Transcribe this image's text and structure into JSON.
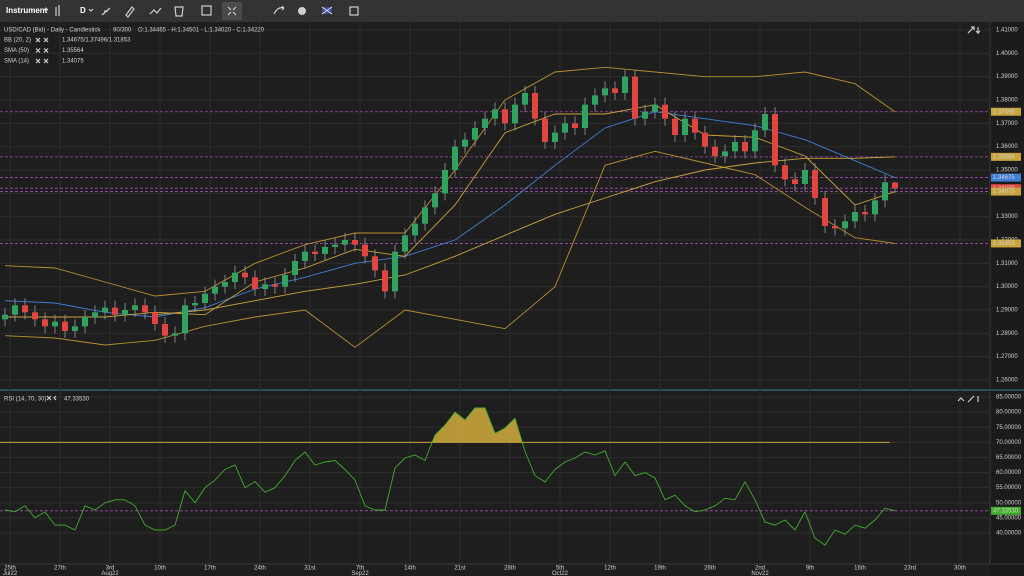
{
  "toolbar": {
    "instrument": "Instrument",
    "timeframe": "D"
  },
  "header": {
    "title": "USD/CAD (Bid) - Daily - Candlestick",
    "count": "90/300",
    "ohlc": "O:1.34465 - H:1.34501 - L:1.34020 - C:1.34220"
  },
  "legend": [
    {
      "name": "BB (20, 2)",
      "value": "1.34675/1.37496/1.31853"
    },
    {
      "name": "SMA (50)",
      "value": "1.35564"
    },
    {
      "name": "SMA (14)",
      "value": "1.34075"
    }
  ],
  "price_axis": {
    "ticks": [
      {
        "value": 1.41,
        "label": "1.41000"
      },
      {
        "value": 1.4,
        "label": "1.40000"
      },
      {
        "value": 1.39,
        "label": "1.39000"
      },
      {
        "value": 1.38,
        "label": "1.38000"
      },
      {
        "value": 1.37,
        "label": "1.37000"
      },
      {
        "value": 1.36,
        "label": "1.36000"
      },
      {
        "value": 1.35,
        "label": "1.35000"
      },
      {
        "value": 1.34,
        "label": "1.34000"
      },
      {
        "value": 1.33,
        "label": "1.33000"
      },
      {
        "value": 1.32,
        "label": "1.32000"
      },
      {
        "value": 1.31,
        "label": "1.31000"
      },
      {
        "value": 1.3,
        "label": "1.30000"
      },
      {
        "value": 1.29,
        "label": "1.29000"
      },
      {
        "value": 1.28,
        "label": "1.28000"
      },
      {
        "value": 1.27,
        "label": "1.27000"
      },
      {
        "value": 1.26,
        "label": "1.26000"
      }
    ]
  },
  "price_markers": [
    {
      "value": 1.37496,
      "color": "#c9a43c"
    },
    {
      "value": 1.35564,
      "color": "#c9a43c"
    },
    {
      "value": 1.34675,
      "color": "#3f7fd6"
    },
    {
      "value": 1.3422,
      "label": "1.34220",
      "color": "#e0463f"
    },
    {
      "value": 1.34075,
      "color": "#c9a43c"
    },
    {
      "value": 1.31853,
      "color": "#c9a43c"
    }
  ],
  "candle_colors": {
    "up": "#2fa35f",
    "down": "#e0463f"
  },
  "candles": [
    [
      1.286,
      1.291,
      1.283,
      1.288
    ],
    [
      1.288,
      1.295,
      1.285,
      1.292
    ],
    [
      1.292,
      1.295,
      1.286,
      1.289
    ],
    [
      1.289,
      1.292,
      1.283,
      1.286
    ],
    [
      1.286,
      1.289,
      1.28,
      1.283
    ],
    [
      1.283,
      1.288,
      1.28,
      1.285
    ],
    [
      1.285,
      1.288,
      1.278,
      1.281
    ],
    [
      1.281,
      1.286,
      1.278,
      1.283
    ],
    [
      1.283,
      1.29,
      1.28,
      1.287
    ],
    [
      1.287,
      1.292,
      1.284,
      1.289
    ],
    [
      1.289,
      1.294,
      1.286,
      1.291
    ],
    [
      1.291,
      1.294,
      1.285,
      1.288
    ],
    [
      1.288,
      1.293,
      1.285,
      1.29
    ],
    [
      1.29,
      1.295,
      1.287,
      1.292
    ],
    [
      1.292,
      1.295,
      1.286,
      1.289
    ],
    [
      1.289,
      1.292,
      1.281,
      1.284
    ],
    [
      1.284,
      1.287,
      1.276,
      1.279
    ],
    [
      1.279,
      1.283,
      1.276,
      1.28
    ],
    [
      1.28,
      1.295,
      1.277,
      1.292
    ],
    [
      1.292,
      1.296,
      1.289,
      1.293
    ],
    [
      1.293,
      1.3,
      1.29,
      1.297
    ],
    [
      1.297,
      1.303,
      1.294,
      1.3
    ],
    [
      1.3,
      1.305,
      1.297,
      1.302
    ],
    [
      1.302,
      1.309,
      1.299,
      1.306
    ],
    [
      1.306,
      1.309,
      1.301,
      1.304
    ],
    [
      1.304,
      1.307,
      1.296,
      1.299
    ],
    [
      1.299,
      1.304,
      1.296,
      1.301
    ],
    [
      1.301,
      1.304,
      1.297,
      1.3
    ],
    [
      1.3,
      1.308,
      1.297,
      1.305
    ],
    [
      1.305,
      1.314,
      1.302,
      1.311
    ],
    [
      1.311,
      1.318,
      1.308,
      1.315
    ],
    [
      1.315,
      1.318,
      1.311,
      1.314
    ],
    [
      1.314,
      1.32,
      1.311,
      1.317
    ],
    [
      1.317,
      1.321,
      1.314,
      1.318
    ],
    [
      1.318,
      1.323,
      1.315,
      1.32
    ],
    [
      1.32,
      1.323,
      1.315,
      1.318
    ],
    [
      1.318,
      1.321,
      1.31,
      1.313
    ],
    [
      1.313,
      1.316,
      1.304,
      1.307
    ],
    [
      1.307,
      1.31,
      1.295,
      1.298
    ],
    [
      1.298,
      1.318,
      1.295,
      1.315
    ],
    [
      1.315,
      1.325,
      1.312,
      1.322
    ],
    [
      1.322,
      1.33,
      1.319,
      1.327
    ],
    [
      1.327,
      1.337,
      1.324,
      1.334
    ],
    [
      1.334,
      1.343,
      1.331,
      1.34
    ],
    [
      1.34,
      1.353,
      1.337,
      1.35
    ],
    [
      1.35,
      1.363,
      1.347,
      1.36
    ],
    [
      1.36,
      1.366,
      1.357,
      1.363
    ],
    [
      1.363,
      1.371,
      1.36,
      1.368
    ],
    [
      1.368,
      1.375,
      1.365,
      1.372
    ],
    [
      1.372,
      1.379,
      1.369,
      1.376
    ],
    [
      1.376,
      1.379,
      1.367,
      1.37
    ],
    [
      1.37,
      1.381,
      1.367,
      1.378
    ],
    [
      1.378,
      1.386,
      1.375,
      1.383
    ],
    [
      1.383,
      1.386,
      1.369,
      1.372
    ],
    [
      1.372,
      1.375,
      1.359,
      1.362
    ],
    [
      1.362,
      1.369,
      1.359,
      1.366
    ],
    [
      1.366,
      1.373,
      1.363,
      1.37
    ],
    [
      1.37,
      1.373,
      1.365,
      1.368
    ],
    [
      1.368,
      1.381,
      1.365,
      1.378
    ],
    [
      1.378,
      1.385,
      1.375,
      1.382
    ],
    [
      1.382,
      1.388,
      1.379,
      1.385
    ],
    [
      1.385,
      1.388,
      1.38,
      1.383
    ],
    [
      1.383,
      1.393,
      1.38,
      1.39
    ],
    [
      1.39,
      1.393,
      1.369,
      1.372
    ],
    [
      1.372,
      1.378,
      1.369,
      1.375
    ],
    [
      1.375,
      1.381,
      1.372,
      1.378
    ],
    [
      1.378,
      1.381,
      1.369,
      1.372
    ],
    [
      1.372,
      1.375,
      1.362,
      1.365
    ],
    [
      1.365,
      1.375,
      1.362,
      1.372
    ],
    [
      1.372,
      1.375,
      1.363,
      1.366
    ],
    [
      1.366,
      1.369,
      1.357,
      1.36
    ],
    [
      1.36,
      1.363,
      1.353,
      1.356
    ],
    [
      1.356,
      1.361,
      1.353,
      1.358
    ],
    [
      1.358,
      1.365,
      1.355,
      1.362
    ],
    [
      1.362,
      1.365,
      1.355,
      1.358
    ],
    [
      1.358,
      1.37,
      1.355,
      1.367
    ],
    [
      1.367,
      1.377,
      1.364,
      1.374
    ],
    [
      1.374,
      1.377,
      1.349,
      1.352
    ],
    [
      1.352,
      1.355,
      1.343,
      1.346
    ],
    [
      1.346,
      1.349,
      1.341,
      1.344
    ],
    [
      1.344,
      1.353,
      1.341,
      1.35
    ],
    [
      1.35,
      1.353,
      1.335,
      1.338
    ],
    [
      1.338,
      1.341,
      1.323,
      1.326
    ],
    [
      1.326,
      1.329,
      1.322,
      1.325
    ],
    [
      1.325,
      1.331,
      1.322,
      1.328
    ],
    [
      1.328,
      1.335,
      1.325,
      1.332
    ],
    [
      1.332,
      1.335,
      1.328,
      1.331
    ],
    [
      1.331,
      1.34,
      1.328,
      1.337
    ],
    [
      1.337,
      1.348,
      1.334,
      1.3447
    ],
    [
      1.34465,
      1.34501,
      1.3402,
      1.3422
    ]
  ],
  "indicators": [
    {
      "color": "#b8902e",
      "values": [
        1.309,
        1.308,
        1.302,
        1.296,
        1.298,
        1.31,
        1.318,
        1.323,
        1.323,
        1.35,
        1.38,
        1.392,
        1.394,
        1.392,
        1.39,
        1.39,
        1.392,
        1.387,
        1.37496
      ]
    },
    {
      "color": "#b8902e",
      "values": [
        1.279,
        1.278,
        1.275,
        1.277,
        1.283,
        1.287,
        1.29,
        1.274,
        1.29,
        1.286,
        1.282,
        1.3,
        1.352,
        1.358,
        1.353,
        1.348,
        1.334,
        1.321,
        1.31853
      ]
    },
    {
      "color": "#3f7fd6",
      "values": [
        1.294,
        1.293,
        1.289,
        1.287,
        1.291,
        1.299,
        1.304,
        1.31,
        1.313,
        1.32,
        1.335,
        1.352,
        1.368,
        1.375,
        1.372,
        1.369,
        1.363,
        1.354,
        1.34675
      ]
    },
    {
      "color": "#c9a43c",
      "values": [
        null,
        null,
        null,
        1.288,
        1.29,
        1.294,
        1.298,
        1.301,
        1.305,
        1.313,
        1.322,
        1.331,
        1.338,
        1.345,
        1.35,
        1.353,
        1.355,
        1.355,
        1.35564
      ]
    },
    {
      "color": "#c9a43c",
      "values": [
        1.287,
        1.287,
        1.287,
        1.289,
        1.288,
        1.302,
        1.308,
        1.316,
        1.313,
        1.335,
        1.366,
        1.374,
        1.374,
        1.378,
        1.365,
        1.364,
        1.356,
        1.335,
        1.34075
      ]
    }
  ],
  "rsi": {
    "name": "RSI (14, 70, 30)",
    "value": "47.33530",
    "overbought": 70,
    "line_color": "#3fae2a",
    "level_color": "#c9a43c",
    "marker": {
      "value": 47.3353,
      "label": "47.33530",
      "color": "#3fae2a"
    },
    "ticks": [
      {
        "value": 85,
        "label": "85.00000"
      },
      {
        "value": 80,
        "label": "80.00000"
      },
      {
        "value": 75,
        "label": "75.00000"
      },
      {
        "value": 70,
        "label": "70.00000"
      },
      {
        "value": 65,
        "label": "65.00000"
      },
      {
        "value": 60,
        "label": "60.00000"
      },
      {
        "value": 55,
        "label": "55.00000"
      },
      {
        "value": 50,
        "label": "50.00000"
      },
      {
        "value": 45,
        "label": "45.00000"
      },
      {
        "value": 40,
        "label": "40.00000"
      }
    ],
    "values": [
      47.6,
      47,
      49,
      45,
      47,
      42.6,
      42.6,
      41,
      49,
      47.6,
      50,
      51,
      51,
      49,
      42.6,
      41,
      41,
      42.6,
      54,
      50,
      55,
      57.5,
      61,
      62.5,
      55,
      57,
      53.5,
      55,
      59,
      64,
      66.8,
      62.5,
      63.5,
      64,
      61,
      57.5,
      49,
      47.6,
      47.6,
      61.5,
      64.8,
      65.8,
      64,
      72.4,
      75.7,
      80,
      77.4,
      81.4,
      81.4,
      73,
      74.7,
      78,
      67,
      59,
      56.9,
      61,
      63.5,
      64.8,
      66.8,
      65.8,
      67.2,
      59,
      63.5,
      59,
      60,
      58.2,
      51,
      52.5,
      49,
      47,
      47.6,
      49,
      51.5,
      51,
      56.9,
      51,
      43.6,
      42.6,
      44.3,
      41,
      47,
      38.3,
      36,
      41,
      39.6,
      42.6,
      41.6,
      44.3,
      48.2,
      47.3353
    ]
  },
  "time_axis": [
    {
      "day": "25th",
      "month": "Jul22"
    },
    {
      "day": "27th"
    },
    {
      "day": "3rd",
      "month": "Aug22"
    },
    {
      "day": "10th"
    },
    {
      "day": "17th"
    },
    {
      "day": "24th"
    },
    {
      "day": "31st"
    },
    {
      "day": "7th",
      "month": "Sep22"
    },
    {
      "day": "14th"
    },
    {
      "day": "21st"
    },
    {
      "day": "28th"
    },
    {
      "day": "5th",
      "month": "Oct22"
    },
    {
      "day": "12th"
    },
    {
      "day": "19th"
    },
    {
      "day": "26th"
    },
    {
      "day": "2nd",
      "month": "Nov22"
    },
    {
      "day": "9th"
    },
    {
      "day": "16th"
    },
    {
      "day": "23rd"
    },
    {
      "day": "30th"
    }
  ]
}
